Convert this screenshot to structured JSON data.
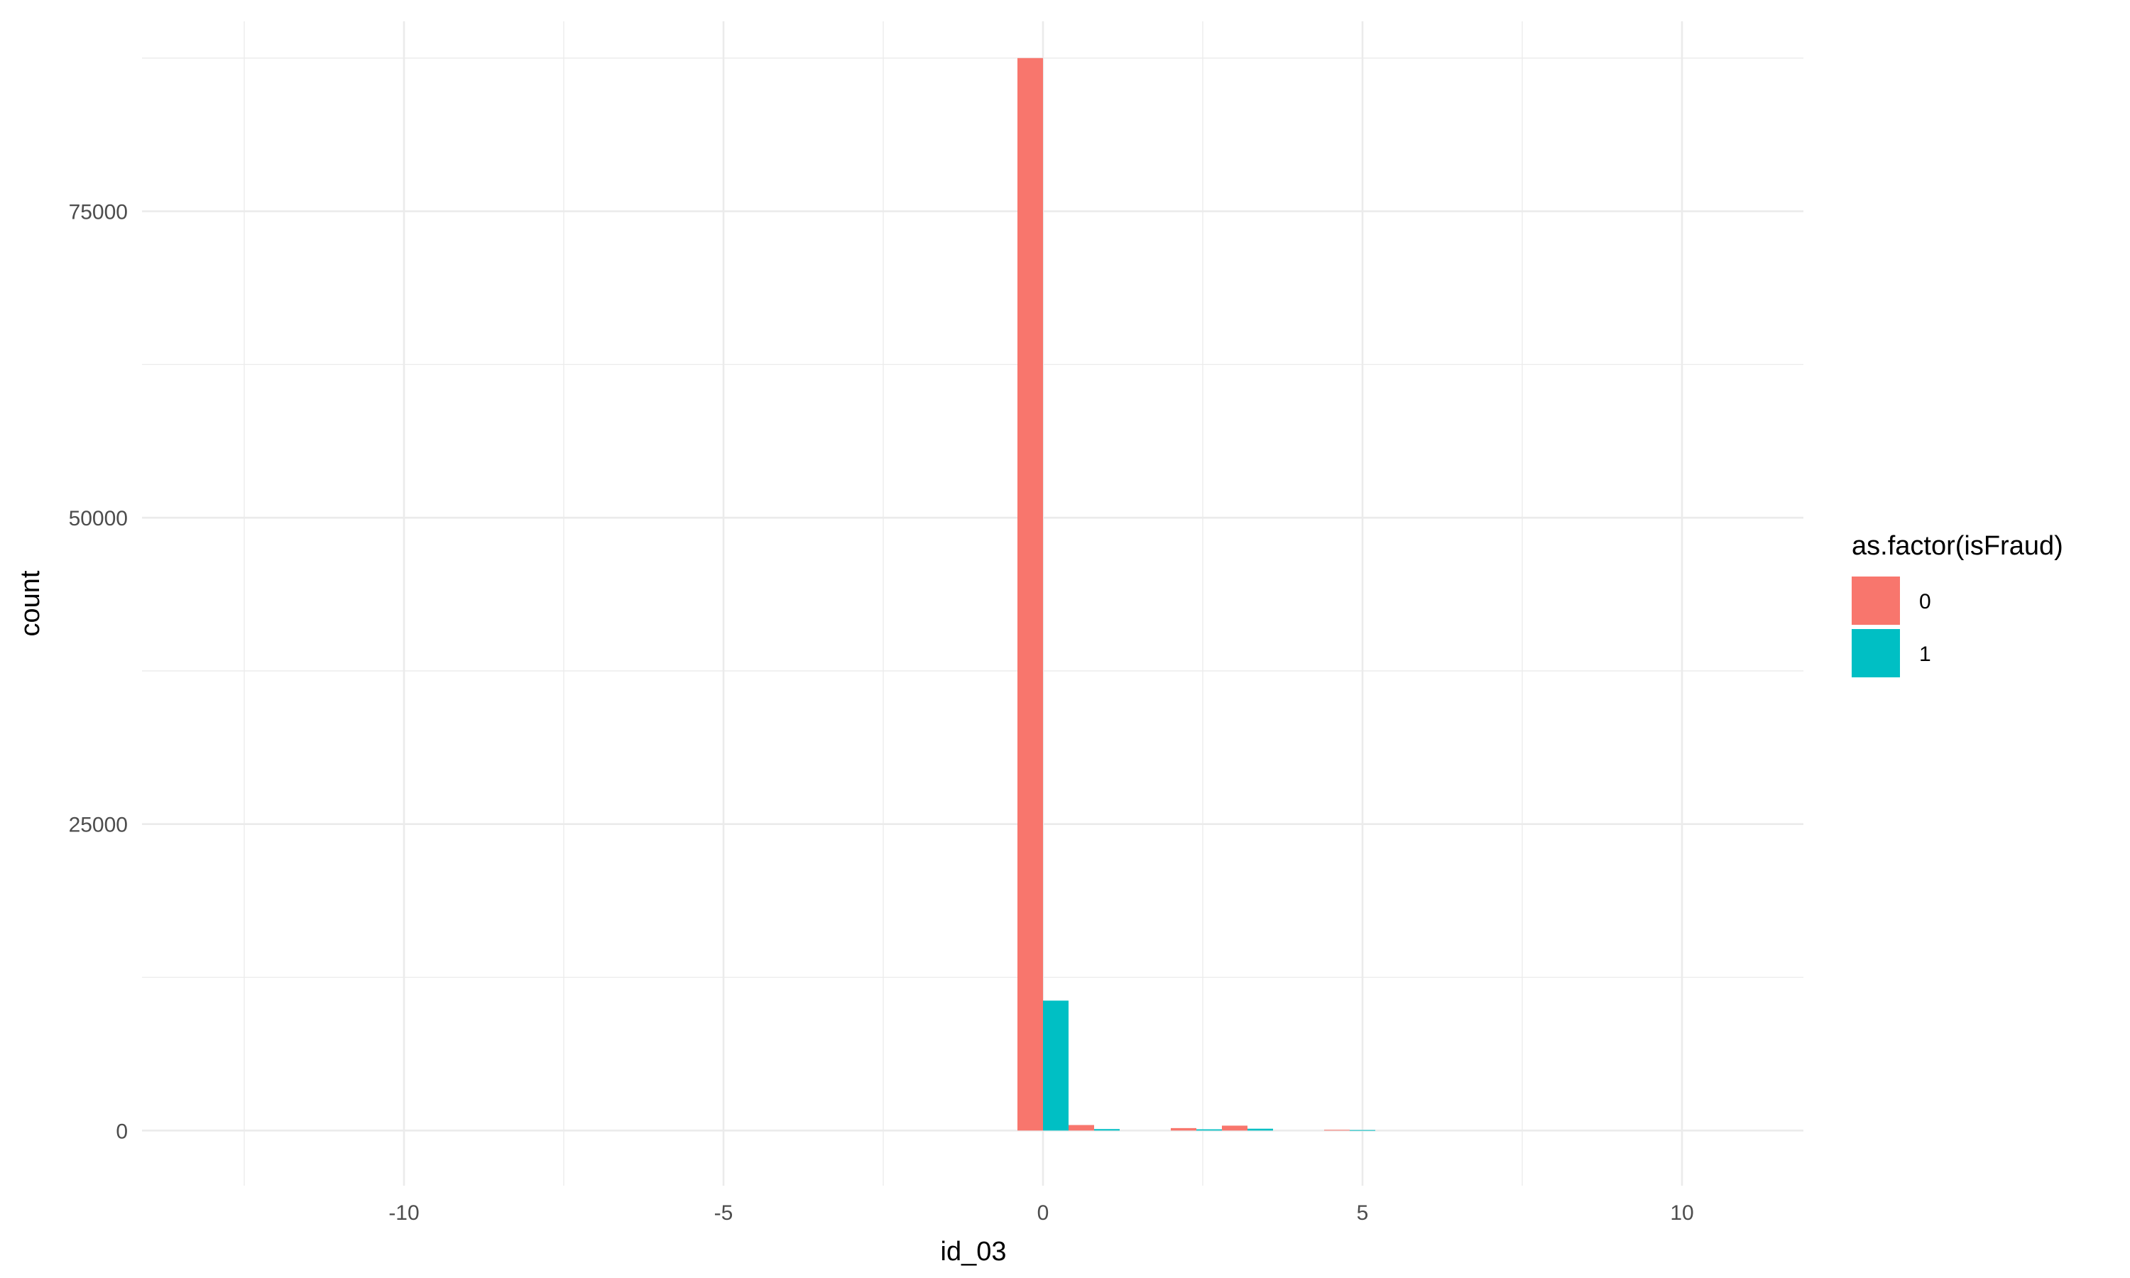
{
  "chart_data": {
    "type": "bar",
    "subtype": "histogram-dodged",
    "title": "",
    "xlabel": "id_03",
    "ylabel": "count",
    "xlim": [
      -14.1,
      11.9
    ],
    "ylim": [
      -4500,
      90500
    ],
    "x_ticks": [
      -10,
      -5,
      0,
      5,
      10
    ],
    "x_tick_labels": [
      "-10",
      "-5",
      "0",
      "5",
      "10"
    ],
    "x_minor_ticks": [
      -12.5,
      -7.5,
      -2.5,
      2.5,
      7.5
    ],
    "y_ticks": [
      0,
      25000,
      50000,
      75000
    ],
    "y_tick_labels": [
      "0",
      "25000",
      "50000",
      "75000"
    ],
    "y_minor_ticks": [
      12500,
      37500,
      62500,
      87500
    ],
    "grid": true,
    "bin_width": 0.8,
    "legend": {
      "title": "as.factor(isFraud)",
      "position": "right"
    },
    "series": [
      {
        "name": "0",
        "color": "#F8766D",
        "points": [
          {
            "x": 0,
            "y": 87500
          },
          {
            "x": 0.8,
            "y": 450
          },
          {
            "x": 2.4,
            "y": 200
          },
          {
            "x": 3.2,
            "y": 400
          },
          {
            "x": 4.8,
            "y": 60
          }
        ]
      },
      {
        "name": "1",
        "color": "#00BFC4",
        "points": [
          {
            "x": 0,
            "y": 10600
          },
          {
            "x": 0.8,
            "y": 120
          },
          {
            "x": 2.4,
            "y": 100
          },
          {
            "x": 3.2,
            "y": 150
          },
          {
            "x": 4.8,
            "y": 40
          }
        ]
      }
    ]
  }
}
